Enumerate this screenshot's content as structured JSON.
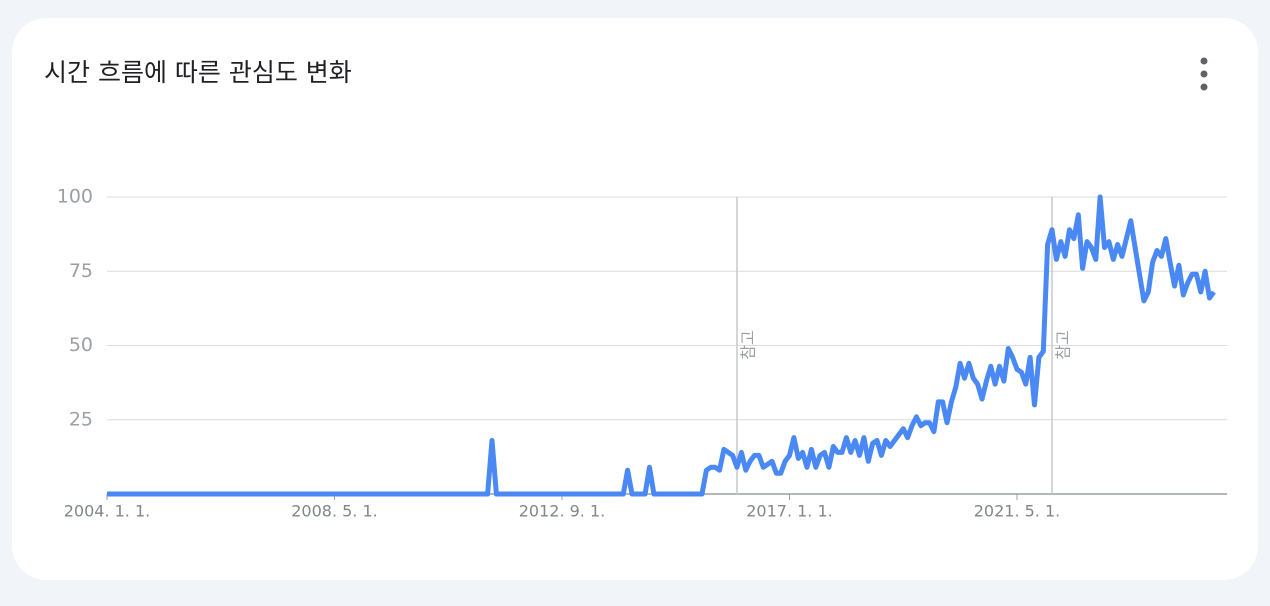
{
  "chart_data": {
    "type": "line",
    "title": "시간 흐름에 따른 관심도 변화",
    "x": [
      "2004-01-01",
      "2011-04-01",
      "2011-05-01",
      "2011-06-01",
      "2013-11-01",
      "2013-12-01",
      "2014-01-01",
      "2014-04-01",
      "2014-05-01",
      "2014-06-01",
      "2015-05-01",
      "2015-06-01",
      "2015-07-01",
      "2015-08-01",
      "2015-09-01",
      "2015-10-01",
      "2015-11-01",
      "2015-12-01",
      "2016-01-01",
      "2016-02-01",
      "2016-03-01",
      "2016-04-01",
      "2016-05-01",
      "2016-06-01",
      "2016-07-01",
      "2016-08-01",
      "2016-09-01",
      "2016-10-01",
      "2016-11-01",
      "2016-12-01",
      "2017-01-01",
      "2017-02-01",
      "2017-03-01",
      "2017-04-01",
      "2017-05-01",
      "2017-06-01",
      "2017-07-01",
      "2017-08-01",
      "2017-09-01",
      "2017-10-01",
      "2017-11-01",
      "2017-12-01",
      "2018-01-01",
      "2018-02-01",
      "2018-03-01",
      "2018-04-01",
      "2018-05-01",
      "2018-06-01",
      "2018-07-01",
      "2018-08-01",
      "2018-09-01",
      "2018-10-01",
      "2018-11-01",
      "2018-12-01",
      "2019-01-01",
      "2019-02-01",
      "2019-03-01",
      "2019-04-01",
      "2019-05-01",
      "2019-06-01",
      "2019-07-01",
      "2019-08-01",
      "2019-09-01",
      "2019-10-01",
      "2019-11-01",
      "2019-12-01",
      "2020-01-01",
      "2020-02-01",
      "2020-03-01",
      "2020-04-01",
      "2020-05-01",
      "2020-06-01",
      "2020-07-01",
      "2020-08-01",
      "2020-09-01",
      "2020-10-01",
      "2020-11-01",
      "2020-12-01",
      "2021-01-01",
      "2021-02-01",
      "2021-03-01",
      "2021-04-01",
      "2021-05-01",
      "2021-06-01",
      "2021-07-01",
      "2021-08-01",
      "2021-09-01",
      "2021-10-01",
      "2021-11-01",
      "2021-12-01",
      "2022-01-01",
      "2022-02-01",
      "2022-03-01",
      "2022-04-01",
      "2022-05-01",
      "2022-06-01",
      "2022-07-01",
      "2022-08-01",
      "2022-09-01",
      "2022-10-01",
      "2022-11-01",
      "2022-12-01",
      "2023-01-01",
      "2023-02-01",
      "2023-03-01",
      "2023-04-01",
      "2023-05-01",
      "2023-06-01",
      "2023-07-01",
      "2023-08-01",
      "2023-09-01",
      "2023-10-01",
      "2023-11-01",
      "2023-12-01",
      "2024-01-01",
      "2024-02-01",
      "2024-03-01",
      "2024-04-01",
      "2024-05-01",
      "2024-06-01",
      "2024-07-01",
      "2024-08-01",
      "2024-09-01",
      "2024-10-01",
      "2024-11-01",
      "2024-12-01",
      "2025-01-01",
      "2025-02-01"
    ],
    "series": [
      {
        "name": "관심도",
        "color": "#4a89f3",
        "values": [
          0,
          0,
          18,
          0,
          0,
          8,
          0,
          0,
          9,
          0,
          0,
          8,
          9,
          9,
          8,
          15,
          14,
          13,
          9,
          14,
          8,
          11,
          13,
          13,
          9,
          10,
          11,
          7,
          7,
          11,
          13,
          19,
          12,
          14,
          9,
          15,
          9,
          13,
          14,
          9,
          16,
          14,
          14,
          19,
          14,
          18,
          13,
          19,
          11,
          17,
          18,
          13,
          18,
          16,
          18,
          20,
          22,
          19,
          23,
          26,
          23,
          24,
          24,
          21,
          31,
          31,
          24,
          31,
          36,
          44,
          39,
          44,
          39,
          37,
          32,
          38,
          43,
          37,
          43,
          38,
          49,
          46,
          42,
          41,
          37,
          46,
          30,
          46,
          48,
          84,
          89,
          79,
          85,
          80,
          89,
          86,
          94,
          76,
          85,
          83,
          79,
          100,
          83,
          85,
          79,
          84,
          80,
          86,
          92,
          83,
          74,
          65,
          68,
          78,
          82,
          80,
          86,
          78,
          70,
          77,
          67,
          71,
          74,
          74,
          68,
          75,
          66,
          68
        ]
      }
    ],
    "xlim": [
      "2004-01-01",
      "2025-05-01"
    ],
    "xticks": [
      {
        "value": "2004-01-01",
        "label": "2004. 1. 1."
      },
      {
        "value": "2008-05-01",
        "label": "2008. 5. 1."
      },
      {
        "value": "2012-09-01",
        "label": "2012. 9. 1."
      },
      {
        "value": "2017-01-01",
        "label": "2017. 1. 1."
      },
      {
        "value": "2021-05-01",
        "label": "2021. 5. 1."
      }
    ],
    "ylim": [
      0,
      100
    ],
    "yticks": [
      25,
      50,
      75,
      100
    ],
    "grid": true,
    "annotations": [
      {
        "x": "2016-01-01",
        "label": "참고"
      },
      {
        "x": "2022-01-01",
        "label": "참고"
      }
    ]
  }
}
